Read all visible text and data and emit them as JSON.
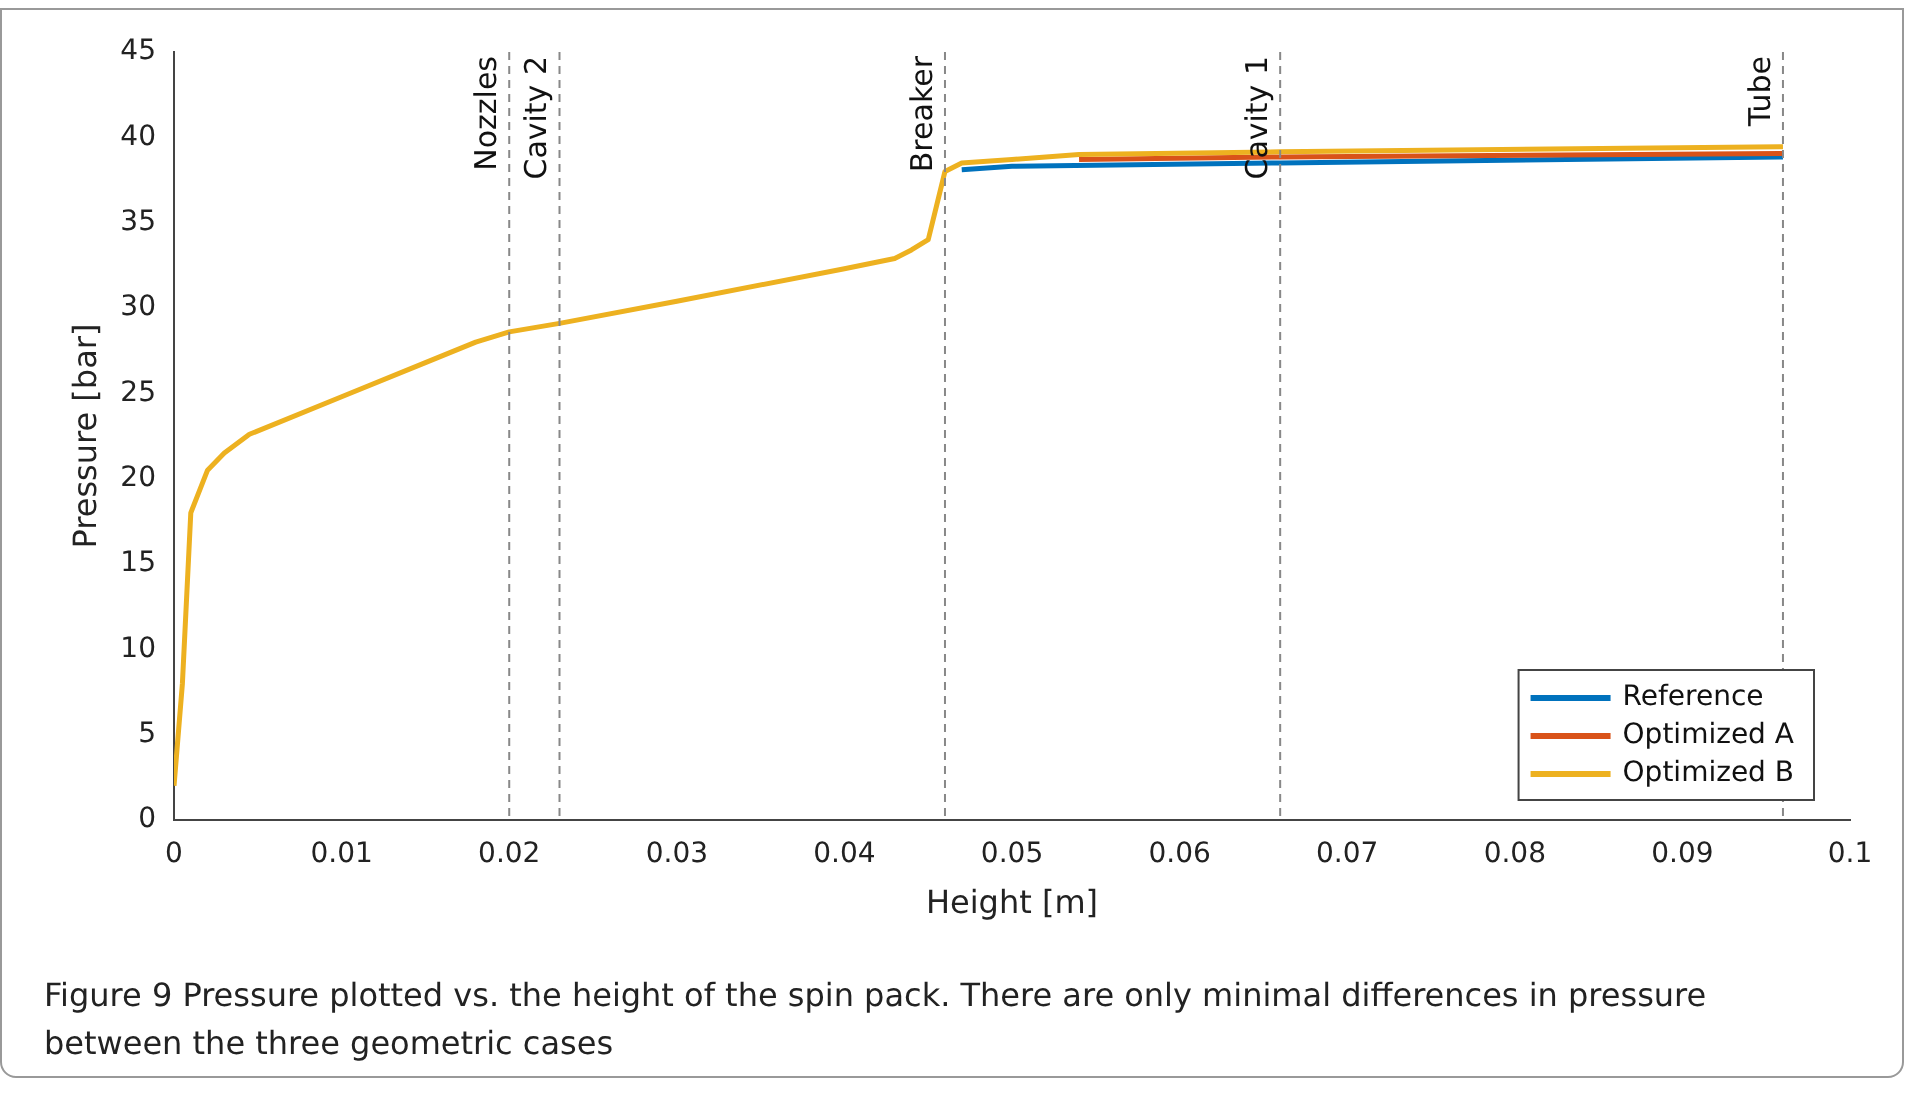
{
  "chart_data": {
    "type": "line",
    "xlabel": "Height [m]",
    "ylabel": "Pressure [bar]",
    "xlim": [
      0,
      0.1
    ],
    "xticks": [
      0,
      0.01,
      0.02,
      0.03,
      0.04,
      0.05,
      0.06,
      0.07,
      0.08,
      0.09,
      0.1
    ],
    "ylim": [
      0,
      45
    ],
    "yticks": [
      0,
      5,
      10,
      15,
      20,
      25,
      30,
      35,
      40,
      45
    ],
    "grid": false,
    "legend": "bottom right",
    "marker": "none",
    "line_style": "solid",
    "series": [
      {
        "name": "Reference",
        "color": "#0072bd",
        "x": [
          0.047,
          0.05,
          0.066,
          0.096
        ],
        "values": [
          38.1,
          38.3,
          38.5,
          38.85
        ]
      },
      {
        "name": "Optimized A",
        "color": "#d95319",
        "x": [
          0.054,
          0.066,
          0.096
        ],
        "values": [
          38.7,
          38.85,
          39.05
        ]
      },
      {
        "name": "Optimized B",
        "color": "#edb120",
        "x": [
          0,
          0.0005,
          0.001,
          0.002,
          0.003,
          0.0045,
          0.01,
          0.015,
          0.018,
          0.02,
          0.023,
          0.03,
          0.04,
          0.043,
          0.044,
          0.045,
          0.0455,
          0.046,
          0.047,
          0.05,
          0.054,
          0.066,
          0.096
        ],
        "values": [
          2,
          8,
          18,
          20.5,
          21.5,
          22.6,
          24.8,
          26.8,
          28,
          28.6,
          29.1,
          30.4,
          32.3,
          32.9,
          33.4,
          34,
          36,
          38,
          38.5,
          38.7,
          39,
          39.15,
          39.45
        ]
      }
    ],
    "ref_lines": [
      {
        "axis": "x",
        "value": 0.02,
        "label": "Nozzles",
        "color": "#888888",
        "line_style": "dashed"
      },
      {
        "axis": "x",
        "value": 0.023,
        "label": "Cavity 2",
        "color": "#888888",
        "line_style": "dashed"
      },
      {
        "axis": "x",
        "value": 0.046,
        "label": "Breaker",
        "color": "#888888",
        "line_style": "dashed"
      },
      {
        "axis": "x",
        "value": 0.066,
        "label": "Cavity 1",
        "color": "#888888",
        "line_style": "dashed"
      },
      {
        "axis": "x",
        "value": 0.096,
        "label": "Tube",
        "color": "#888888",
        "line_style": "dashed"
      }
    ],
    "annotations": [
      "Figure 9  Pressure plotted vs. the height of the spin pack. There are only minimal differences in pressure between the three geometric cases"
    ]
  }
}
